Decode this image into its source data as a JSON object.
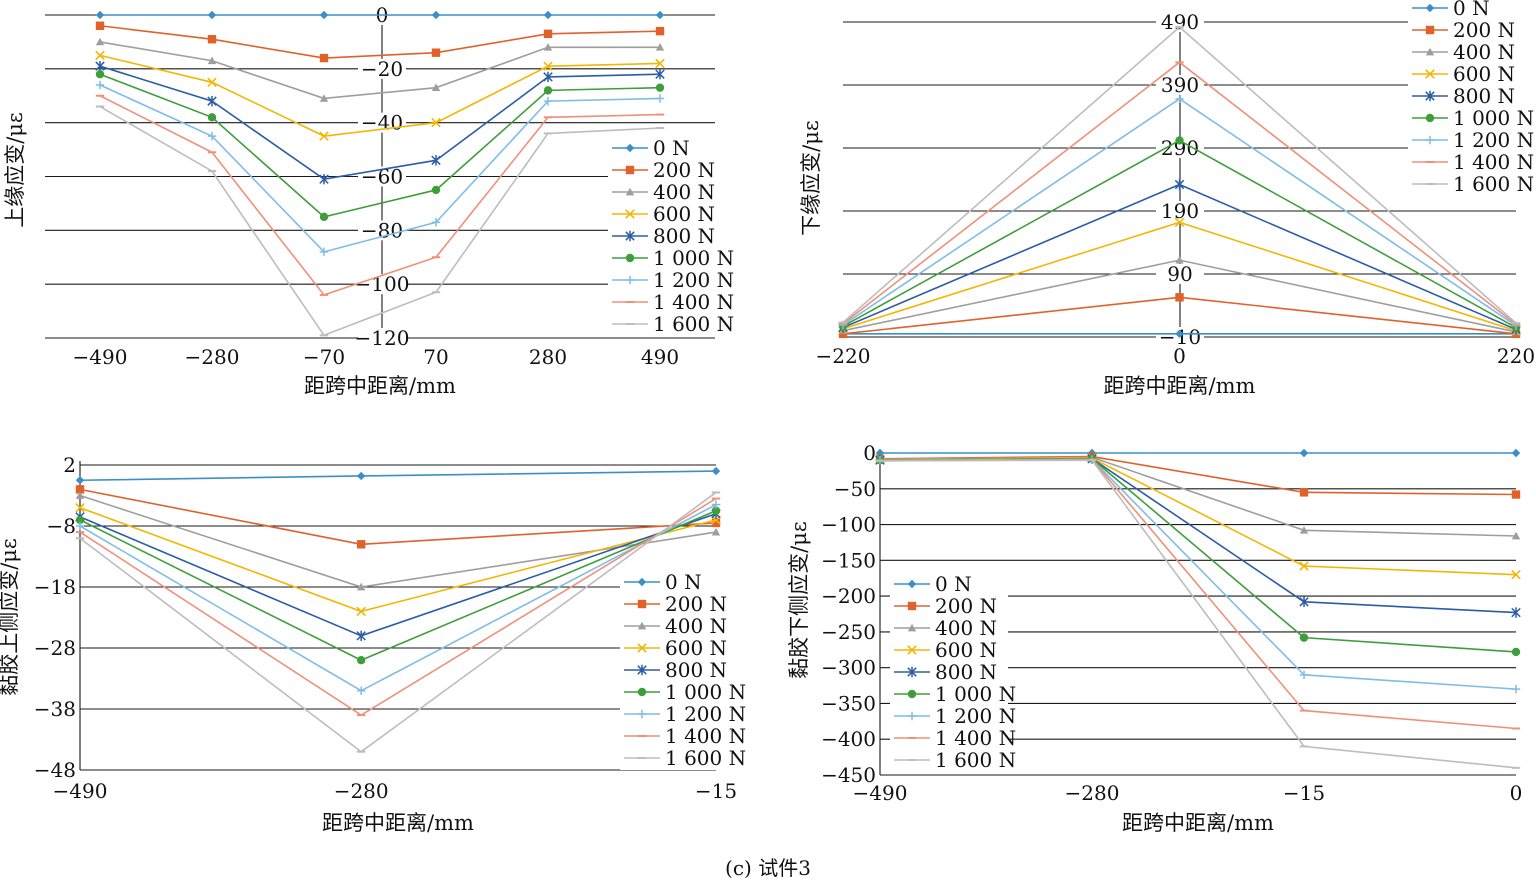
{
  "caption": "(c) 试件3",
  "colors": {
    "0 N": "#3b8fc8",
    "200 N": "#e0622a",
    "400 N": "#9e9e9e",
    "600 N": "#f2b705",
    "800 N": "#2a5ca8",
    "1 000 N": "#3f9e3c",
    "1 200 N": "#7fbde8",
    "1 400 N": "#f0907a",
    "1 600 N": "#bdbdbd"
  },
  "chart_data": [
    {
      "type": "line",
      "xlabel": "距跨中距离/mm",
      "ylabel": "上缘应变/με",
      "x": [
        -490,
        -280,
        -70,
        70,
        280,
        490
      ],
      "xticks": [
        "-490",
        "-280",
        "-70",
        "70",
        "280",
        "490"
      ],
      "ylim": [
        -120,
        0
      ],
      "yticks": [
        0,
        -20,
        -40,
        -60,
        -80,
        -100,
        -120
      ],
      "grid": true,
      "legend": "right",
      "series": [
        {
          "name": "0 N",
          "marker": "diamond",
          "values": [
            0,
            0,
            0,
            0,
            0,
            0
          ]
        },
        {
          "name": "200 N",
          "marker": "square",
          "values": [
            -4,
            -9,
            -16,
            -14,
            -7,
            -6
          ]
        },
        {
          "name": "400 N",
          "marker": "triangle",
          "values": [
            -10,
            -17,
            -31,
            -27,
            -12,
            -12
          ]
        },
        {
          "name": "600 N",
          "marker": "x",
          "values": [
            -15,
            -25,
            -45,
            -40,
            -19,
            -18
          ]
        },
        {
          "name": "800 N",
          "marker": "star",
          "values": [
            -19,
            -32,
            -61,
            -54,
            -23,
            -22
          ]
        },
        {
          "name": "1 000 N",
          "marker": "circle",
          "values": [
            -22,
            -38,
            -75,
            -65,
            -28,
            -27
          ]
        },
        {
          "name": "1 200 N",
          "marker": "plus",
          "values": [
            -26,
            -45,
            -88,
            -77,
            -32,
            -31
          ]
        },
        {
          "name": "1 400 N",
          "marker": "dash",
          "values": [
            -30,
            -51,
            -104,
            -90,
            -38,
            -37
          ]
        },
        {
          "name": "1 600 N",
          "marker": "dash",
          "values": [
            -34,
            -58,
            -119,
            -103,
            -44,
            -42
          ]
        }
      ]
    },
    {
      "type": "line",
      "xlabel": "距跨中距离/mm",
      "ylabel": "下缘应变/με",
      "x": [
        -220,
        0,
        220
      ],
      "xticks": [
        "-220",
        "0",
        "220"
      ],
      "ylim": [
        -10,
        490
      ],
      "yticks": [
        490,
        390,
        290,
        190,
        90,
        -10
      ],
      "grid": true,
      "legend": "top-right",
      "series": [
        {
          "name": "0 N",
          "marker": "diamond",
          "values": [
            -5,
            -5,
            -5
          ]
        },
        {
          "name": "200 N",
          "marker": "square",
          "values": [
            -5,
            53,
            -5
          ]
        },
        {
          "name": "400 N",
          "marker": "triangle",
          "values": [
            0,
            112,
            -2
          ]
        },
        {
          "name": "600 N",
          "marker": "x",
          "values": [
            3,
            172,
            0
          ]
        },
        {
          "name": "800 N",
          "marker": "star",
          "values": [
            5,
            232,
            2
          ]
        },
        {
          "name": "1 000 N",
          "marker": "circle",
          "values": [
            7,
            302,
            5
          ]
        },
        {
          "name": "1 200 N",
          "marker": "plus",
          "values": [
            9,
            368,
            8
          ]
        },
        {
          "name": "1 400 N",
          "marker": "dash",
          "values": [
            11,
            426,
            10
          ]
        },
        {
          "name": "1 600 N",
          "marker": "dash",
          "values": [
            13,
            482,
            12
          ]
        }
      ]
    },
    {
      "type": "line",
      "xlabel": "距跨中距离/mm",
      "ylabel": "黏胶上侧应变/με",
      "x": [
        -490,
        -280,
        -15
      ],
      "xticks": [
        "-490",
        "-280",
        "-15"
      ],
      "ylim": [
        -48,
        2
      ],
      "yticks": [
        2,
        -8,
        -18,
        -28,
        -38,
        -48
      ],
      "grid": true,
      "legend": "right",
      "series": [
        {
          "name": "0 N",
          "marker": "diamond",
          "values": [
            -0.5,
            0.2,
            1
          ]
        },
        {
          "name": "200 N",
          "marker": "square",
          "values": [
            -2,
            -11,
            -7.5
          ]
        },
        {
          "name": "400 N",
          "marker": "triangle",
          "values": [
            -3,
            -18,
            -9
          ]
        },
        {
          "name": "600 N",
          "marker": "x",
          "values": [
            -5,
            -22,
            -7
          ]
        },
        {
          "name": "800 N",
          "marker": "star",
          "values": [
            -6.5,
            -26,
            -6
          ]
        },
        {
          "name": "1 000 N",
          "marker": "circle",
          "values": [
            -7,
            -30,
            -5.5
          ]
        },
        {
          "name": "1 200 N",
          "marker": "plus",
          "values": [
            -8,
            -35,
            -4.5
          ]
        },
        {
          "name": "1 400 N",
          "marker": "dash",
          "values": [
            -9,
            -39,
            -3.5
          ]
        },
        {
          "name": "1 600 N",
          "marker": "dash",
          "values": [
            -10,
            -45,
            -2.5
          ]
        }
      ]
    },
    {
      "type": "line",
      "xlabel": "距跨中距离/mm",
      "ylabel": "黏胶下侧应变/με",
      "x": [
        -490,
        -280,
        -15,
        0
      ],
      "xticks": [
        "-490",
        "-280",
        "-15",
        "0"
      ],
      "ylim": [
        -450,
        0
      ],
      "yticks": [
        0,
        -50,
        -100,
        -150,
        -200,
        -250,
        -300,
        -350,
        -400,
        -450
      ],
      "grid": true,
      "legend": "left",
      "series": [
        {
          "name": "0 N",
          "marker": "diamond",
          "values": [
            0,
            0,
            0,
            0
          ]
        },
        {
          "name": "200 N",
          "marker": "square",
          "values": [
            -8,
            -5,
            -55,
            -58
          ]
        },
        {
          "name": "400 N",
          "marker": "triangle",
          "values": [
            -9,
            -6,
            -108,
            -116
          ]
        },
        {
          "name": "600 N",
          "marker": "x",
          "values": [
            -9,
            -7,
            -158,
            -170
          ]
        },
        {
          "name": "800 N",
          "marker": "star",
          "values": [
            -10,
            -8,
            -208,
            -223
          ]
        },
        {
          "name": "1 000 N",
          "marker": "circle",
          "values": [
            -10,
            -8,
            -258,
            -278
          ]
        },
        {
          "name": "1 200 N",
          "marker": "plus",
          "values": [
            -10,
            -9,
            -310,
            -330
          ]
        },
        {
          "name": "1 400 N",
          "marker": "dash",
          "values": [
            -11,
            -9,
            -360,
            -385
          ]
        },
        {
          "name": "1 600 N",
          "marker": "dash",
          "values": [
            -11,
            -10,
            -410,
            -440
          ]
        }
      ]
    }
  ]
}
